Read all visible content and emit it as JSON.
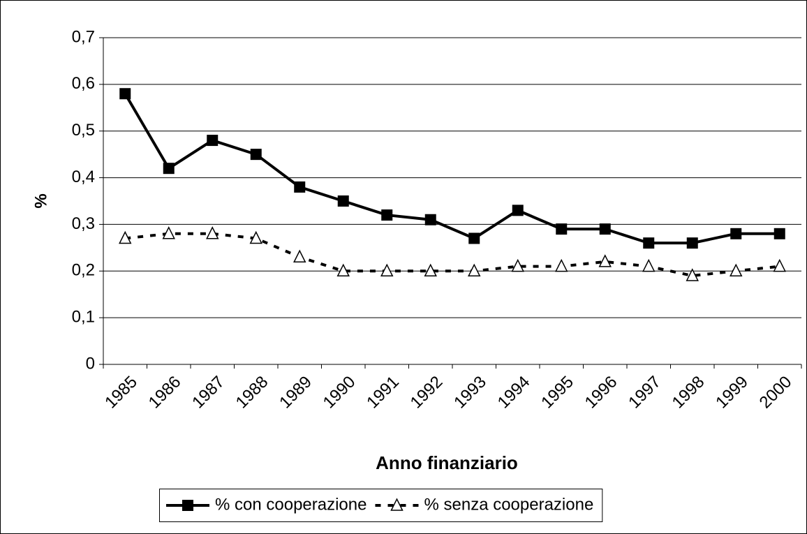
{
  "chart_data": {
    "type": "line",
    "x_label": "Anno finanziario",
    "y_label": "%",
    "categories": [
      "1985",
      "1986",
      "1987",
      "1988",
      "1989",
      "1990",
      "1991",
      "1992",
      "1993",
      "1994",
      "1995",
      "1996",
      "1997",
      "1998",
      "1999",
      "2000"
    ],
    "series": [
      {
        "name": "% con cooperazione",
        "color": "#000000",
        "marker": "square",
        "line_style": "solid",
        "values": [
          0.58,
          0.42,
          0.48,
          0.45,
          0.38,
          0.35,
          0.32,
          0.31,
          0.27,
          0.33,
          0.29,
          0.29,
          0.26,
          0.26,
          0.28,
          0.28
        ]
      },
      {
        "name": "% senza cooperazione",
        "color": "#000000",
        "marker": "triangle",
        "line_style": "dashed",
        "values": [
          0.27,
          0.28,
          0.28,
          0.27,
          0.23,
          0.2,
          0.2,
          0.2,
          0.2,
          0.21,
          0.21,
          0.22,
          0.21,
          0.19,
          0.2,
          0.21
        ]
      }
    ],
    "ylim": [
      0,
      0.7
    ],
    "yticks": [
      0,
      {
        "value": 0.1,
        "label": "0,1"
      },
      {
        "value": 0.2,
        "label": "0,2"
      },
      {
        "value": 0.3,
        "label": "0,3"
      },
      {
        "value": 0.4,
        "label": "0,4"
      },
      {
        "value": 0.5,
        "label": "0,5"
      },
      {
        "value": 0.6,
        "label": "0,6"
      },
      {
        "value": 0.7,
        "label": "0,7"
      }
    ],
    "grid": true,
    "legend": "bottom"
  }
}
